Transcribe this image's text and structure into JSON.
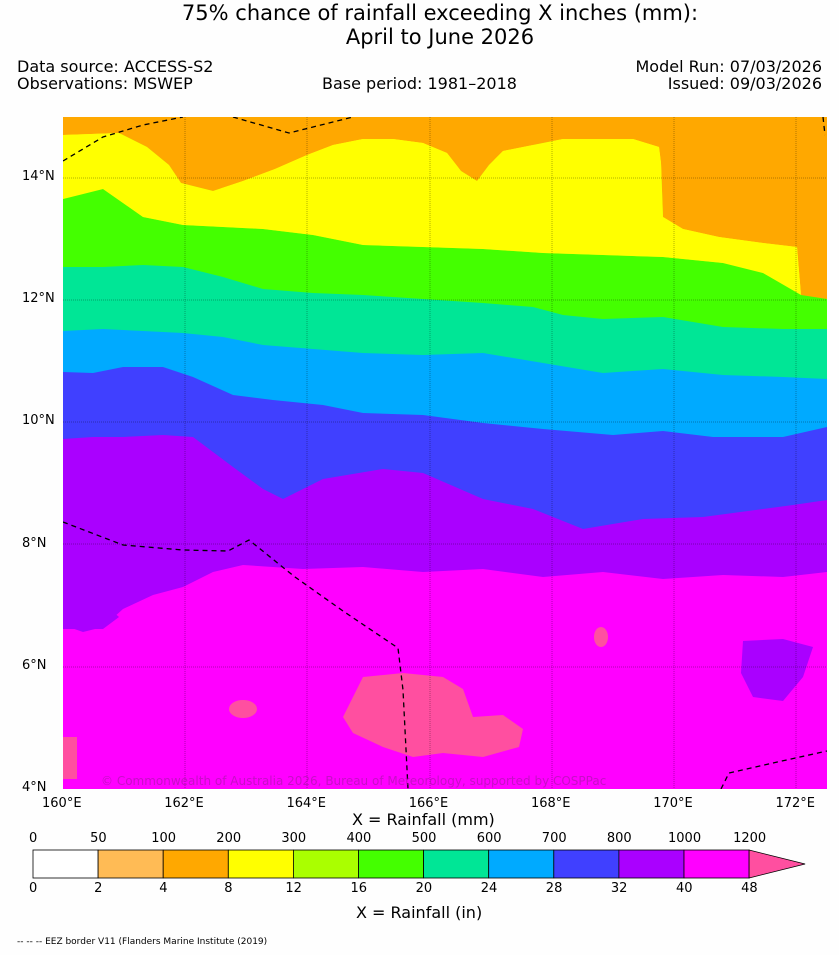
{
  "header": {
    "title_line1": "75% chance of rainfall exceeding X inches (mm):",
    "title_line2": "April to June 2026",
    "data_source": "Data source: ACCESS-S2",
    "observations": "Observations: MSWEP",
    "base_period": "Base period: 1981–2018",
    "model_run": "Model Run: 07/03/2026",
    "issued": "Issued: 09/03/2026"
  },
  "map": {
    "lon_labels": [
      "160°E",
      "162°E",
      "164°E",
      "166°E",
      "168°E",
      "170°E",
      "172°E"
    ],
    "lat_labels": [
      "14°N",
      "12°N",
      "10°N",
      "8°N",
      "6°N",
      "4°N"
    ],
    "lon_range": [
      160,
      172.5
    ],
    "lat_range": [
      4,
      15
    ],
    "copyright": "© Commonwealth of Australia 2026, Bureau of Meteorology, supported by COSPPac",
    "xlabel": "X = Rainfall (mm)"
  },
  "colorbar": {
    "mm_labels": [
      "0",
      "50",
      "100",
      "200",
      "300",
      "400",
      "500",
      "600",
      "700",
      "800",
      "1000",
      "1200"
    ],
    "in_labels": [
      "0",
      "2",
      "4",
      "8",
      "12",
      "16",
      "20",
      "24",
      "28",
      "32",
      "40",
      "48"
    ],
    "colors": [
      "#ffffff",
      "#ffbb55",
      "#ffa800",
      "#ffff00",
      "#aaff00",
      "#44ff00",
      "#00e696",
      "#00aaff",
      "#4040ff",
      "#aa00ff",
      "#ff00ff",
      "#ff4fa0"
    ],
    "xlabel": "X = Rainfall (in)"
  },
  "footnote": "-- -- -- EEZ border V11 (Flanders Marine Institute (2019)"
}
